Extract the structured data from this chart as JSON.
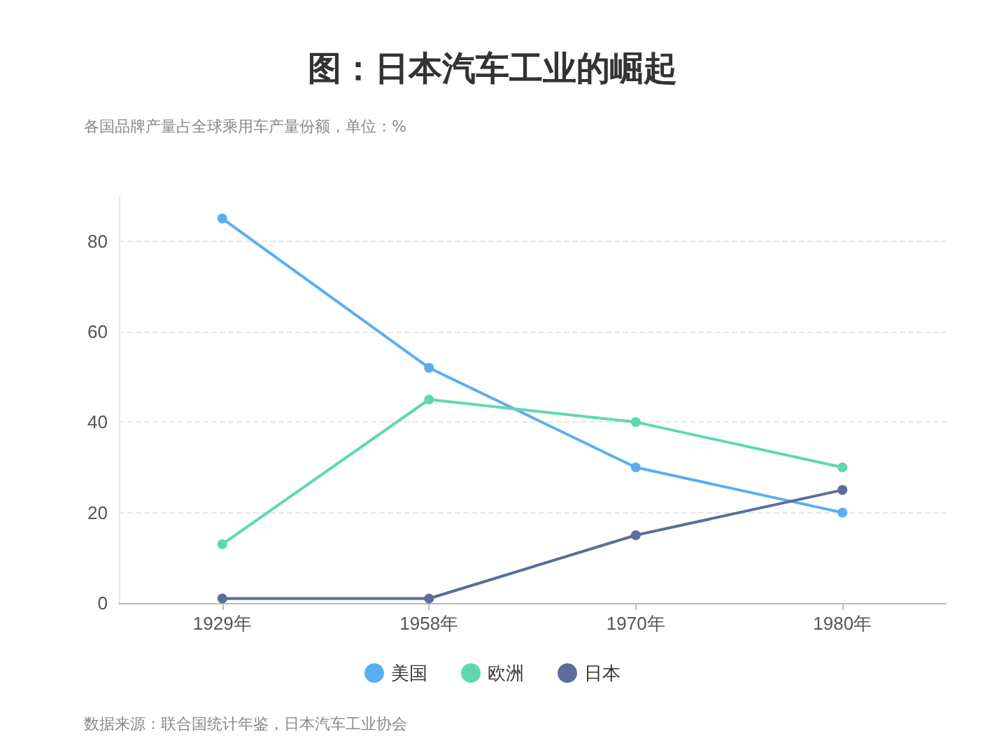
{
  "chart_data": {
    "type": "line",
    "title": "图：日本汽车工业的崛起",
    "subtitle": "各国品牌产量占全球乘用车产量份额，单位：%",
    "annotations": [
      "数据来源：联合国统计年鉴，日本汽车工业协会"
    ],
    "categories": [
      "1929年",
      "1958年",
      "1970年",
      "1980年"
    ],
    "series": [
      {
        "name": "美国",
        "color": "#5aaef0",
        "values": [
          85,
          52,
          30,
          20
        ]
      },
      {
        "name": "欧洲",
        "color": "#5fd8b0",
        "values": [
          13,
          45,
          40,
          30
        ]
      },
      {
        "name": "日本",
        "color": "#5b6e99",
        "values": [
          1,
          1,
          15,
          25
        ]
      }
    ],
    "ylim": [
      0,
      90
    ],
    "yticks": [
      0,
      20,
      40,
      60,
      80
    ],
    "grid": "y",
    "legend": "bottom",
    "marker": "circle",
    "line_style": "solid"
  }
}
